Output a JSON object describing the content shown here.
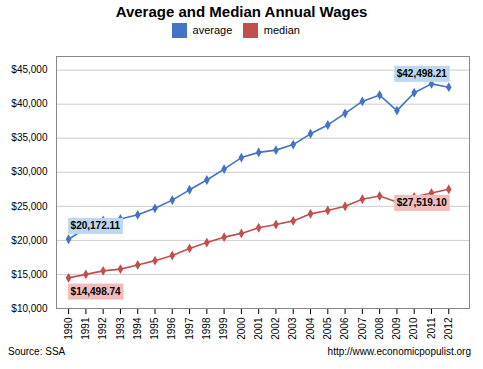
{
  "chart_data": {
    "type": "line",
    "title": "Average and Median Annual Wages",
    "x": [
      1990,
      1991,
      1992,
      1993,
      1994,
      1995,
      1996,
      1997,
      1998,
      1999,
      2000,
      2001,
      2002,
      2003,
      2004,
      2005,
      2006,
      2007,
      2008,
      2009,
      2010,
      2011,
      2012
    ],
    "series": [
      {
        "name": "average",
        "color": "#4472C4",
        "values": [
          20172.11,
          21811.6,
          22935.42,
          23132.67,
          23753.53,
          24705.66,
          25913.9,
          27426.0,
          28861.44,
          30469.84,
          32154.82,
          32921.92,
          33252.09,
          34064.95,
          35648.55,
          36952.94,
          38651.41,
          40405.48,
          41334.97,
          39054.36,
          41673.83,
          42979.61,
          42498.21
        ]
      },
      {
        "name": "median",
        "color": "#C0504D",
        "values": [
          14498.74,
          15012.93,
          15527.07,
          15783.42,
          16399.23,
          17026.6,
          17785.0,
          18821.41,
          19679.07,
          20476.52,
          21028.62,
          21861.52,
          22340.88,
          22862.07,
          23895.24,
          24396.11,
          25007.04,
          26036.06,
          26514.69,
          25636.97,
          26363.55,
          26965.43,
          27519.1
        ]
      }
    ],
    "xlim": [
      1989.3,
      2013.2
    ],
    "xticks": [
      1990,
      1991,
      1992,
      1993,
      1994,
      1995,
      1996,
      1997,
      1998,
      1999,
      2000,
      2001,
      2002,
      2003,
      2004,
      2005,
      2006,
      2007,
      2008,
      2009,
      2010,
      2011,
      2012
    ],
    "ylim": [
      10000,
      47000
    ],
    "yticks": [
      {
        "value": 10000,
        "label": "$10,000"
      },
      {
        "value": 15000,
        "label": "$15,000"
      },
      {
        "value": 20000,
        "label": "$20,000"
      },
      {
        "value": 25000,
        "label": "$25,000"
      },
      {
        "value": 30000,
        "label": "$30,000"
      },
      {
        "value": 35000,
        "label": "$35,000"
      },
      {
        "value": 40000,
        "label": "$40,000"
      },
      {
        "value": 45000,
        "label": "$45,000"
      }
    ],
    "grid": true,
    "legend": "top",
    "marker": "diamond",
    "annotations": [
      {
        "text": "$20,172.11",
        "x": 1990,
        "y": 20172.11,
        "color": "#BDD7EE"
      },
      {
        "text": "$14,498.74",
        "x": 1990,
        "y": 14498.74,
        "color": "#F2BCBC"
      },
      {
        "text": "$42,498.21",
        "x": 2012,
        "y": 42498.21,
        "color": "#BDD7EE"
      },
      {
        "text": "$27,519.10",
        "x": 2012,
        "y": 27519.1,
        "color": "#F2BCBC"
      }
    ],
    "caption": [
      "Source: SSA",
      "http://www.economicpopulist.org"
    ]
  }
}
